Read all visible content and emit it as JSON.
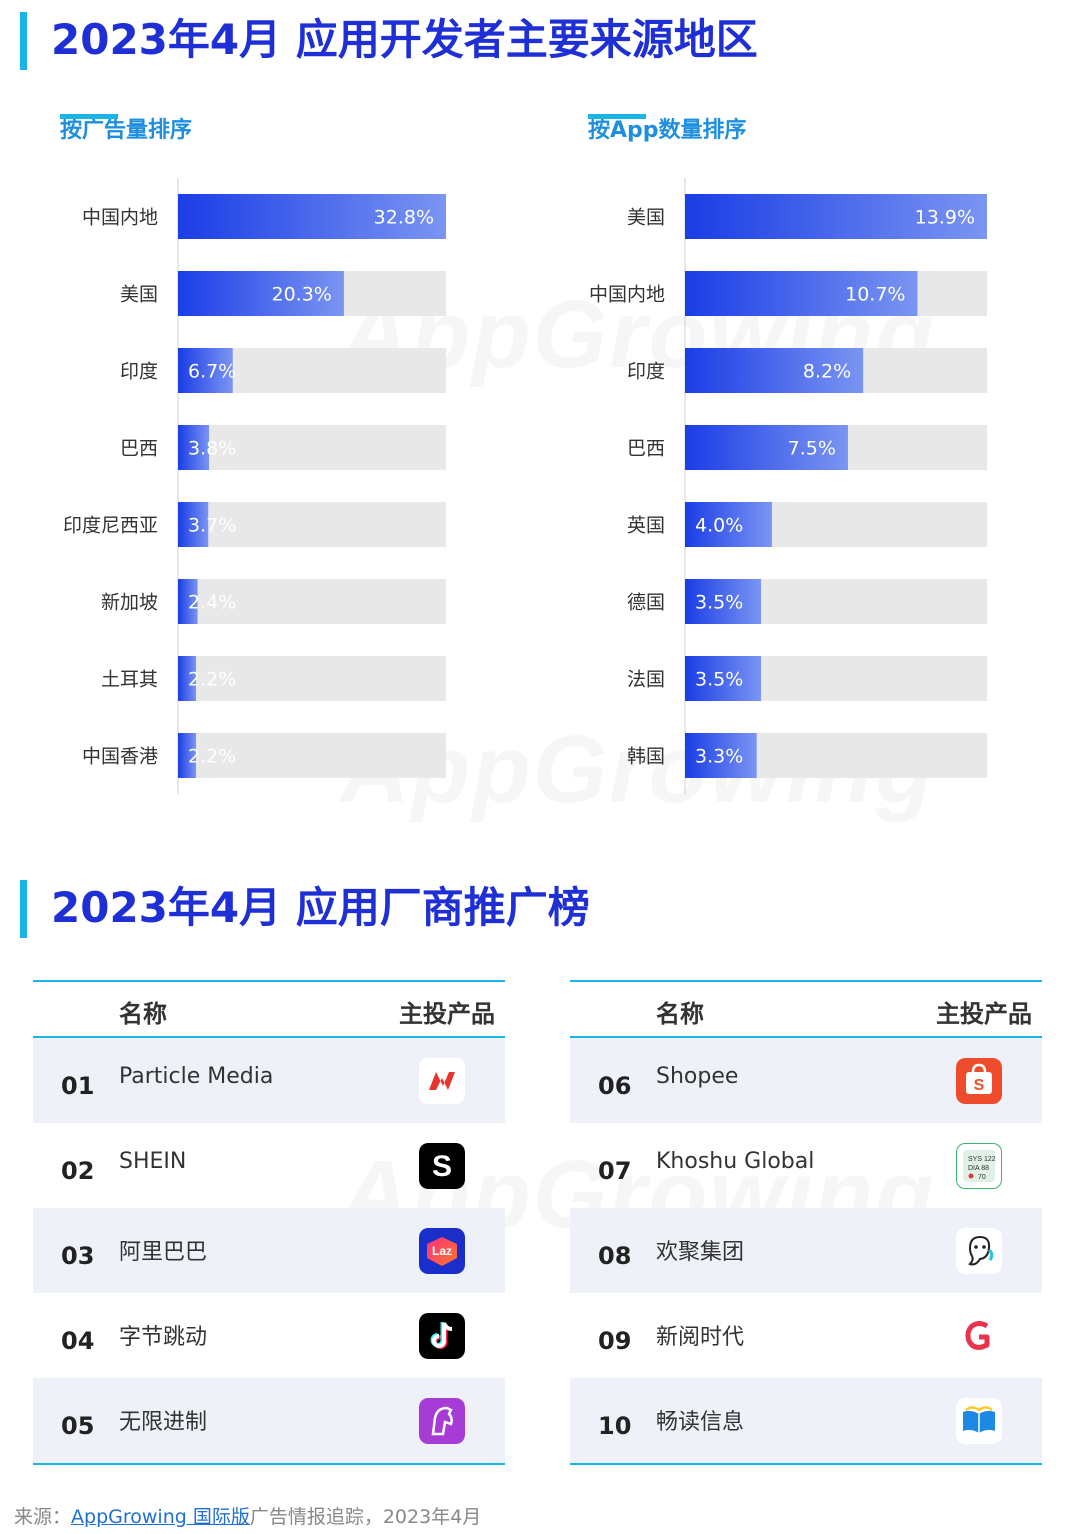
{
  "section1_title": "2023年4月  应用开发者主要来源地区",
  "section2_title": "2023年4月  应用厂商推广榜",
  "watermark": "AppGrowing",
  "chart_data": [
    {
      "type": "bar",
      "orientation": "horizontal",
      "title": "按广告量排序",
      "categories": [
        "中国内地",
        "美国",
        "印度",
        "巴西",
        "印度尼西亚",
        "新加坡",
        "土耳其",
        "中国香港"
      ],
      "values": [
        32.8,
        20.3,
        6.7,
        3.8,
        3.7,
        2.4,
        2.2,
        2.2
      ],
      "value_labels": [
        "32.8%",
        "20.3%",
        "6.7%",
        "3.8%",
        "3.7%",
        "2.4%",
        "2.2%",
        "2.2%"
      ],
      "xlim": [
        0,
        32.8
      ]
    },
    {
      "type": "bar",
      "orientation": "horizontal",
      "title": "按App数量排序",
      "categories": [
        "美国",
        "中国内地",
        "印度",
        "巴西",
        "英国",
        "德国",
        "法国",
        "韩国"
      ],
      "values": [
        13.9,
        10.7,
        8.2,
        7.5,
        4.0,
        3.5,
        3.5,
        3.3
      ],
      "value_labels": [
        "13.9%",
        "10.7%",
        "8.2%",
        "7.5%",
        "4.0%",
        "3.5%",
        "3.5%",
        "3.3%"
      ],
      "xlim": [
        0,
        13.9
      ]
    }
  ],
  "table": {
    "col_name": "名称",
    "col_product": "主投产品",
    "left_rows": [
      {
        "rank": "01",
        "name": "Particle Media",
        "icon": "newsbreak-icon",
        "color": "#e8342d"
      },
      {
        "rank": "02",
        "name": "SHEIN",
        "icon": "shein-icon",
        "color": "#000000"
      },
      {
        "rank": "03",
        "name": "阿里巴巴",
        "icon": "lazada-icon",
        "color": "#1a2ec9"
      },
      {
        "rank": "04",
        "name": "字节跳动",
        "icon": "tiktok-icon",
        "color": "#000000"
      },
      {
        "rank": "05",
        "name": "无限进制",
        "icon": "horse-app-icon",
        "color": "#a63bd6"
      }
    ],
    "right_rows": [
      {
        "rank": "06",
        "name": "Shopee",
        "icon": "shopee-icon",
        "color": "#ee4d2d"
      },
      {
        "rank": "07",
        "name": "Khoshu Global",
        "icon": "blood-pressure-icon",
        "color": "#3bb371"
      },
      {
        "rank": "08",
        "name": "欢聚集团",
        "icon": "bigo-mascot-icon",
        "color": "#25c3d9"
      },
      {
        "rank": "09",
        "name": "新阅时代",
        "icon": "goodnovel-icon",
        "color": "#e8334a"
      },
      {
        "rank": "10",
        "name": "畅读信息",
        "icon": "open-book-icon",
        "color": "#1e88e5"
      }
    ]
  },
  "source": {
    "prefix": "来源：",
    "link": "AppGrowing 国际版",
    "suffix": "广告情报追踪，2023年4月"
  }
}
